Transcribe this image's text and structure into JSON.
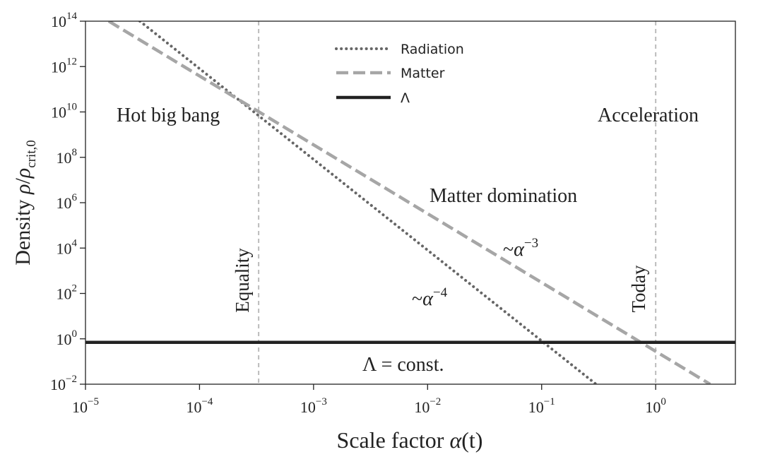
{
  "chart_data": {
    "type": "line",
    "xlabel": {
      "prefix": "Scale factor ",
      "var": "α",
      "suffix": "(t)"
    },
    "ylabel": {
      "prefix": "Density ",
      "rho": "ρ",
      "slash": "/",
      "sub": "crit,0"
    },
    "x_scale": "log",
    "y_scale": "log",
    "xlim": [
      1e-05,
      5
    ],
    "ylim": [
      0.01,
      100000000000000.0
    ],
    "x_ticks": [
      {
        "value": 1e-05,
        "base": "10",
        "exp": "−5"
      },
      {
        "value": 0.0001,
        "base": "10",
        "exp": "−4"
      },
      {
        "value": 0.001,
        "base": "10",
        "exp": "−3"
      },
      {
        "value": 0.01,
        "base": "10",
        "exp": "−2"
      },
      {
        "value": 0.1,
        "base": "10",
        "exp": "−1"
      },
      {
        "value": 1,
        "base": "10",
        "exp": "0"
      }
    ],
    "y_ticks": [
      {
        "value": 0.01,
        "base": "10",
        "exp": "−2"
      },
      {
        "value": 1,
        "base": "10",
        "exp": "0"
      },
      {
        "value": 100.0,
        "base": "10",
        "exp": "2"
      },
      {
        "value": 10000.0,
        "base": "10",
        "exp": "4"
      },
      {
        "value": 1000000.0,
        "base": "10",
        "exp": "6"
      },
      {
        "value": 100000000.0,
        "base": "10",
        "exp": "8"
      },
      {
        "value": 10000000000.0,
        "base": "10",
        "exp": "10"
      },
      {
        "value": 1000000000000.0,
        "base": "10",
        "exp": "12"
      },
      {
        "value": 100000000000000.0,
        "base": "10",
        "exp": "14"
      }
    ],
    "grid": false,
    "legend_position": "top-center",
    "series": [
      {
        "name": "Radiation",
        "style": "dotted",
        "color": "#666666",
        "x": [
          3e-05,
          0.3
        ],
        "y": [
          100000000000000.0,
          0.01
        ]
      },
      {
        "name": "Matter",
        "style": "dashed",
        "color": "#a6a6a6",
        "x": [
          1.6e-05,
          3.0
        ],
        "y": [
          100000000000000.0,
          0.01
        ]
      },
      {
        "name": "Λ",
        "style": "solid",
        "color": "#222222",
        "x": [
          1e-05,
          5
        ],
        "y": [
          0.7,
          0.7
        ]
      }
    ],
    "vlines": [
      {
        "x": 0.00033,
        "label": "Equality",
        "color": "#bbbbbb"
      },
      {
        "x": 1,
        "label": "Today",
        "color": "#bbbbbb"
      }
    ],
    "annotations": [
      {
        "id": "hot-big-bang",
        "text": "Hot big bang"
      },
      {
        "id": "acceleration",
        "text": "Acceleration"
      },
      {
        "id": "matter-domination",
        "text": "Matter domination"
      },
      {
        "id": "lambda-const",
        "text": "Λ = const."
      },
      {
        "id": "matter-scaling",
        "prefix": "~",
        "var": "α",
        "exp": "−3"
      },
      {
        "id": "radiation-scaling",
        "prefix": "~",
        "var": "α",
        "exp": "−4"
      }
    ]
  }
}
